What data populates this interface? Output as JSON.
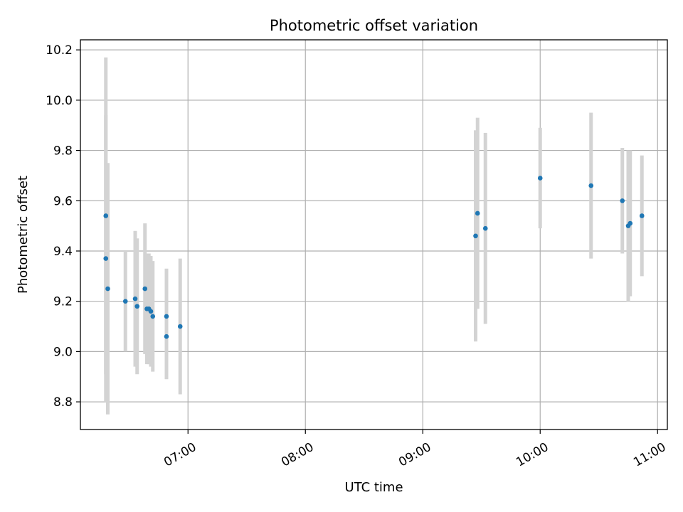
{
  "chart_data": {
    "type": "scatter",
    "title": "Photometric offset variation",
    "xlabel": "UTC time",
    "ylabel": "Photometric offset",
    "xlim": [
      "06:05",
      "11:05"
    ],
    "ylim": [
      8.69,
      10.24
    ],
    "x_ticks": [
      "07:00",
      "08:00",
      "09:00",
      "10:00",
      "11:00"
    ],
    "y_ticks": [
      "8.8",
      "9.0",
      "9.2",
      "9.4",
      "9.6",
      "9.8",
      "10.0",
      "10.2"
    ],
    "grid": true,
    "colors": {
      "point": "#1f77b4",
      "errorbar": "#d3d3d3",
      "grid": "#b0b0b0"
    },
    "points": [
      {
        "t": "06:18",
        "y": 9.54,
        "err": 0.63
      },
      {
        "t": "06:18",
        "y": 9.37,
        "err": 0.57
      },
      {
        "t": "06:19",
        "y": 9.25,
        "err": 0.5
      },
      {
        "t": "06:28",
        "y": 9.2,
        "err": 0.2
      },
      {
        "t": "06:33",
        "y": 9.21,
        "err": 0.27
      },
      {
        "t": "06:34",
        "y": 9.18,
        "err": 0.27
      },
      {
        "t": "06:38",
        "y": 9.25,
        "err": 0.26
      },
      {
        "t": "06:39",
        "y": 9.17,
        "err": 0.22
      },
      {
        "t": "06:40",
        "y": 9.17,
        "err": 0.22
      },
      {
        "t": "06:41",
        "y": 9.16,
        "err": 0.22
      },
      {
        "t": "06:42",
        "y": 9.14,
        "err": 0.22
      },
      {
        "t": "06:49",
        "y": 9.06,
        "err": 0.17
      },
      {
        "t": "06:49",
        "y": 9.14,
        "err": 0.19
      },
      {
        "t": "06:56",
        "y": 9.1,
        "err": 0.27
      },
      {
        "t": "09:27",
        "y": 9.46,
        "err": 0.42
      },
      {
        "t": "09:28",
        "y": 9.55,
        "err": 0.38
      },
      {
        "t": "09:32",
        "y": 9.49,
        "err": 0.38
      },
      {
        "t": "10:00",
        "y": 9.69,
        "err": 0.2
      },
      {
        "t": "10:26",
        "y": 9.66,
        "err": 0.29
      },
      {
        "t": "10:42",
        "y": 9.6,
        "err": 0.21
      },
      {
        "t": "10:45",
        "y": 9.5,
        "err": 0.3
      },
      {
        "t": "10:46",
        "y": 9.51,
        "err": 0.29
      },
      {
        "t": "10:52",
        "y": 9.54,
        "err": 0.24
      }
    ]
  }
}
